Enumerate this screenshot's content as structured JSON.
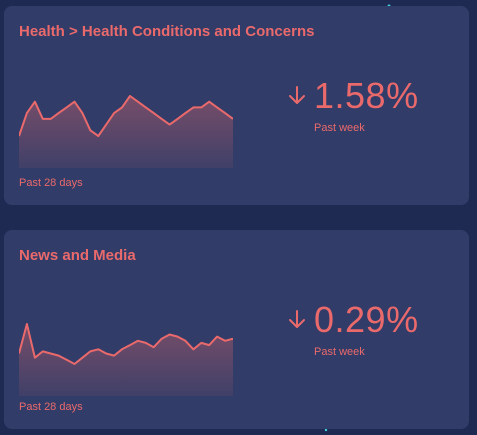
{
  "cards": [
    {
      "title": "Health > Health Conditions and Concerns",
      "caption": "Past 28 days",
      "trend": "down",
      "change": "1.58%",
      "period": "Past week",
      "series": [
        42,
        46,
        48,
        45,
        45,
        46,
        47,
        48,
        46,
        43,
        42,
        44,
        46,
        47,
        49,
        48,
        47,
        46,
        45,
        44,
        45,
        46,
        47,
        47,
        48,
        47,
        46,
        45
      ]
    },
    {
      "title": "News and Media",
      "caption": "Past 28 days",
      "trend": "down",
      "change": "0.29%",
      "period": "Past week",
      "series": [
        40,
        54,
        38,
        41,
        40,
        39,
        37,
        35,
        38,
        41,
        42,
        40,
        39,
        42,
        44,
        46,
        45,
        43,
        47,
        49,
        48,
        46,
        42,
        45,
        44,
        48,
        46,
        47
      ]
    }
  ],
  "colors": {
    "accent": "#ea6a6c",
    "card": "#313c68",
    "background": "#1e2a52"
  }
}
